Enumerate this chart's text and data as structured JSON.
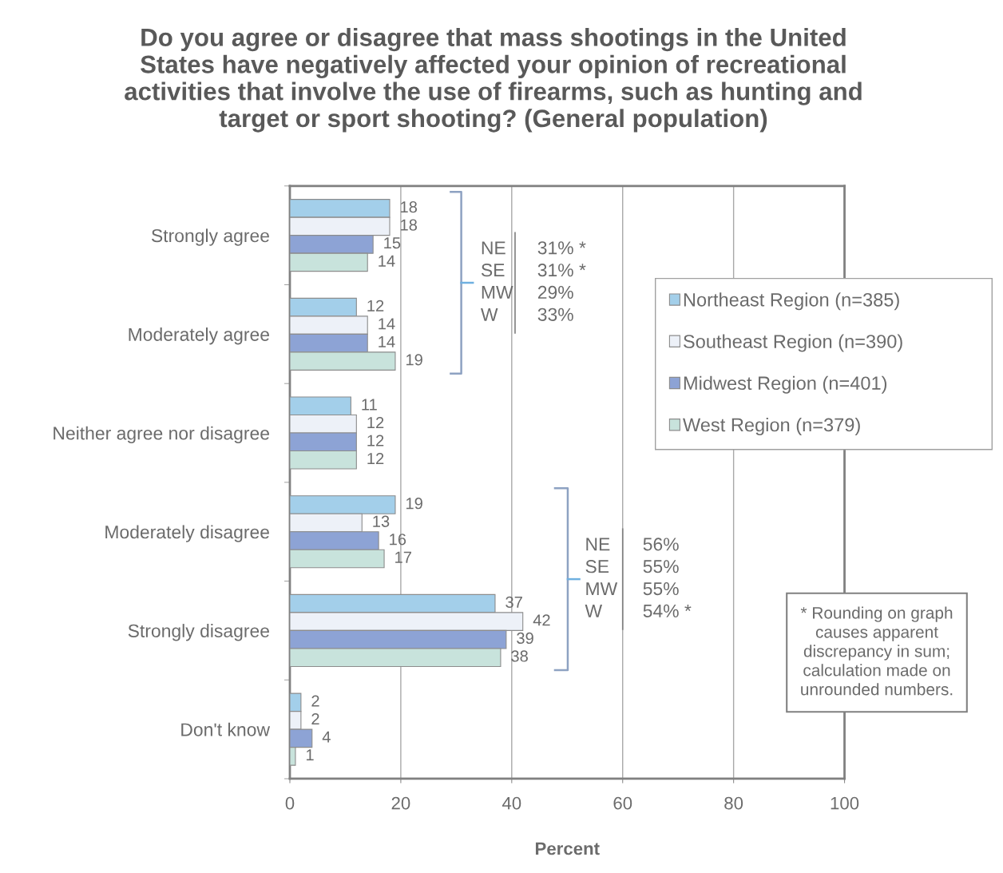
{
  "chart_data": {
    "type": "bar",
    "orientation": "horizontal",
    "title": "Do you agree or disagree that mass shootings in the United\nStates have negatively affected your opinion of recreational\nactivities that involve the use of firearms, such as hunting and\ntarget or sport shooting? (General population)",
    "xlabel": "Percent",
    "categories": [
      "Strongly agree",
      "Moderately agree",
      "Neither agree nor disagree",
      "Moderately disagree",
      "Strongly disagree",
      "Don't know"
    ],
    "series": [
      {
        "name": "Northeast Region (n=385)",
        "color": "#a3cfea",
        "values": [
          18,
          12,
          11,
          19,
          37,
          2
        ]
      },
      {
        "name": "Southeast Region (n=390)",
        "color": "#edf1f8",
        "values": [
          18,
          14,
          12,
          13,
          42,
          2
        ]
      },
      {
        "name": "Midwest Region (n=401)",
        "color": "#8da3d5",
        "values": [
          15,
          14,
          12,
          16,
          39,
          4
        ]
      },
      {
        "name": "West Region (n=379)",
        "color": "#c8e3dc",
        "values": [
          14,
          19,
          12,
          17,
          38,
          1
        ]
      }
    ],
    "xlim": [
      0,
      100
    ],
    "xticks": [
      0,
      20,
      40,
      60,
      80,
      100
    ],
    "grid": "x",
    "legend": "right",
    "data_labels": true,
    "annotations": [
      "NE 31% *",
      "SE 31% *",
      "MW 29%",
      "W 33%",
      "NE 56%",
      "SE 55%",
      "MW 55%",
      "W 54% *",
      "* Rounding on graph\ncauses apparent\ndiscrepancy in sum;\ncalculation made on\nunrounded numbers."
    ]
  }
}
